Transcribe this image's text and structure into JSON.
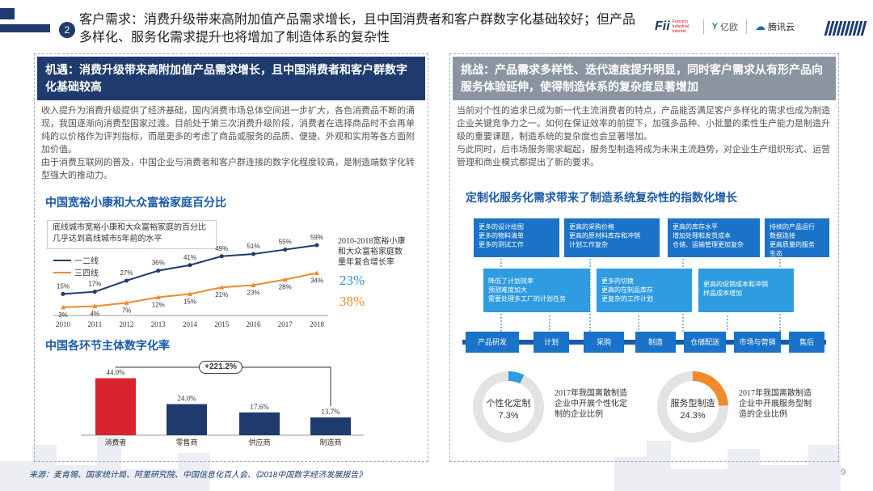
{
  "header": {
    "number": "2",
    "title": "客户需求：消费升级带来高附加值产品需求增长，且中国消费者和客户群数字化基础较好；但产品多样化、服务化需求提升也将增加了制造体系的复杂性",
    "logo_fii": "Fii",
    "logo_small": "Foxconn Industrial Internet",
    "logo_yiou": "亿欧",
    "logo_tencent": "腾讯云"
  },
  "left": {
    "head": "机遇：消费升级带来高附加值产品需求增长，且中国消费者和客户群数字化基础较高",
    "para1": "收入提升为消费升级提供了经济基础，国内消费市场总体空间进一步扩大，各色消费品不断的涌现，我国逐渐向消费型国家过渡。目前处于第三次消费升级阶段，消费者在选择商品时不会再单纯的以价格作为评判指标，而是更多的考虑了商品或服务的品质、便捷、外观和实用等各方面附加价值。",
    "para2": "由于消费互联网的普及，中国企业与消费者和客户群连接的数字化程度较高，是制造端数字化转型强大的推动力。",
    "chart1_title": "中国宽裕小康和大众富裕家庭百分比",
    "chart1_note": "底线城市宽裕小康和大众富裕家庭的百分比几乎达到高线城市5年前的水平",
    "side_note": "2010-2018宽裕小康和大众富裕家庭数量年复合增长率",
    "cagr1": "23%",
    "cagr2": "38%",
    "chart2_title": "中国各环节主体数字化率",
    "chart2_arrow": "+221.2%"
  },
  "right": {
    "head": "挑战：产品需求多样性、迭代速度提升明显，同时客户需求从有形产品向服务体验延伸，使得制造体系的复杂度显著增加",
    "para1": "当前对个性的追求已成为新一代主流消费者的特点，产品能否满足客户多样化的需求也成为制造企业关键竞争力之一。如何在保证效率的前提下，加强多品种、小批量的柔性生产能力是制造升级的重要课题，制造系统的复杂度也会显著增加。",
    "para2": "与此同时，后市场服务需求崛起，服务型制造将成为未来主流趋势，对企业生产组织形式、运营管理和商业模式都提出了新的要求。",
    "diagram_title": "定制化服务化需求带来了制造系统复杂性的指数化增长",
    "top_boxes": [
      "更多的设计绘图\n更多的物料清单\n更多的测试工作",
      "更高的采购价格\n更高的原材料库存和冲销\n计划工作复杂",
      "更高的库存水平\n增加处理和发货成本\n仓储、运输管理更加复杂",
      "持续的产品运行\n数据连接\n更高质量的服务\n生态"
    ],
    "mid_boxes": [
      "降低了计划效率\n预测难度加大\n需要处理多工厂的计划任务",
      "更多的切换\n更高的在制品库存\n更复杂的工作计划",
      "更高的促销成本和冲销\n样品成本增加"
    ],
    "flow": [
      "产品研发",
      "计划",
      "采购",
      "制造",
      "仓储配送",
      "市场与营销",
      "售后"
    ],
    "donut1_label": "个性化定制",
    "donut1_value": "7.3%",
    "donut1_desc": "2017年我国离散制造企业中开展个性化定制的企业比例",
    "donut2_label": "服务型制造",
    "donut2_value": "24.3%",
    "donut2_desc": "2017年我国离散制造企业中开展服务型制造的企业比例"
  },
  "footer": {
    "source": "来源：麦肯锡、国家统计局、阿里研究院、中国信息化百人会、《2018中国数字经济发展报告》",
    "page": "9"
  },
  "colors": {
    "navy": "#1f3a6d",
    "blue": "#1a73c8",
    "orange": "#f08a2c",
    "red": "#d9232e"
  },
  "chart_data": [
    {
      "type": "line",
      "title": "中国宽裕小康和大众富裕家庭百分比",
      "x": [
        "2010",
        "2011",
        "2012",
        "2013",
        "2014",
        "2015",
        "2016",
        "2017",
        "2018"
      ],
      "series": [
        {
          "name": "一二线",
          "values": [
            15,
            17,
            27,
            36,
            41,
            49,
            51,
            55,
            59
          ],
          "labels": [
            "15%",
            "17%",
            "27%",
            "36%",
            "41%",
            "49%",
            "51%",
            "55%",
            "59%"
          ]
        },
        {
          "name": "三四线",
          "values": [
            3,
            4,
            7,
            12,
            15,
            21,
            23,
            28,
            34
          ],
          "labels": [
            "3%",
            "4%",
            "7%",
            "12%",
            "15%",
            "21%",
            "23%",
            "28%",
            "34%"
          ]
        }
      ],
      "ylim": [
        0,
        70
      ]
    },
    {
      "type": "bar",
      "title": "中国各环节主体数字化率",
      "categories": [
        "消费者",
        "零售商",
        "供应商",
        "制造商"
      ],
      "values": [
        44.0,
        24.0,
        17.6,
        13.7
      ],
      "labels": [
        "44.0%",
        "24.0%",
        "17.6%",
        "13.7%"
      ],
      "ylim": [
        0,
        50
      ]
    },
    {
      "type": "pie",
      "title": "个性化定制",
      "values": [
        7.3,
        92.7
      ]
    },
    {
      "type": "pie",
      "title": "服务型制造",
      "values": [
        24.3,
        75.7
      ]
    }
  ]
}
